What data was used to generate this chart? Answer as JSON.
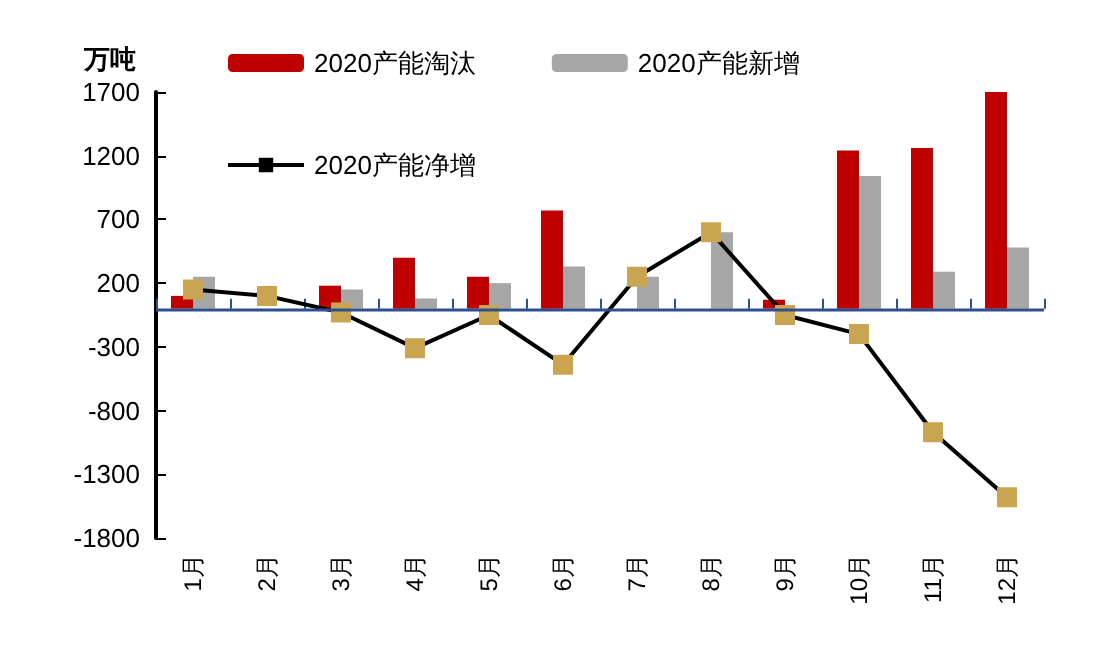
{
  "chart_data": {
    "type": "bar",
    "ylabel": "万吨",
    "categories": [
      "1月",
      "2月",
      "3月",
      "4月",
      "5月",
      "6月",
      "7月",
      "8月",
      "9月",
      "10月",
      "11月",
      "12月"
    ],
    "series": [
      {
        "name": "2020产能淘汰",
        "color": "#c00000",
        "values": [
          100,
          null,
          180,
          400,
          250,
          770,
          null,
          null,
          70,
          1240,
          1260,
          1700
        ]
      },
      {
        "name": "2020产能新增",
        "color": "#a6a6a6",
        "values": [
          250,
          null,
          150,
          80,
          200,
          330,
          250,
          600,
          null,
          1040,
          290,
          480
        ]
      },
      {
        "name": "2020产能净增",
        "type": "line",
        "color": "#000000",
        "marker": "square",
        "colors": [
          "#c9a552",
          "#c9a552",
          "#c9a552",
          "#c9a552",
          "#c9a552",
          "#c9a552",
          "#c9a552",
          "#c9a552",
          "#c9a552",
          "#c9a552",
          "#c9a552",
          "#c9a552"
        ],
        "values": [
          150,
          100,
          -30,
          -310,
          -50,
          -440,
          250,
          600,
          -50,
          -200,
          -970,
          -1480
        ]
      }
    ],
    "ylim": [
      -1800,
      1700
    ],
    "yticks": [
      -1800,
      -1300,
      -800,
      -300,
      200,
      700,
      1200,
      1700
    ],
    "ref_lines": [
      {
        "axis": "y",
        "value": 0,
        "color": "#2f4f8f"
      }
    ],
    "grid": false,
    "legend": "top"
  }
}
